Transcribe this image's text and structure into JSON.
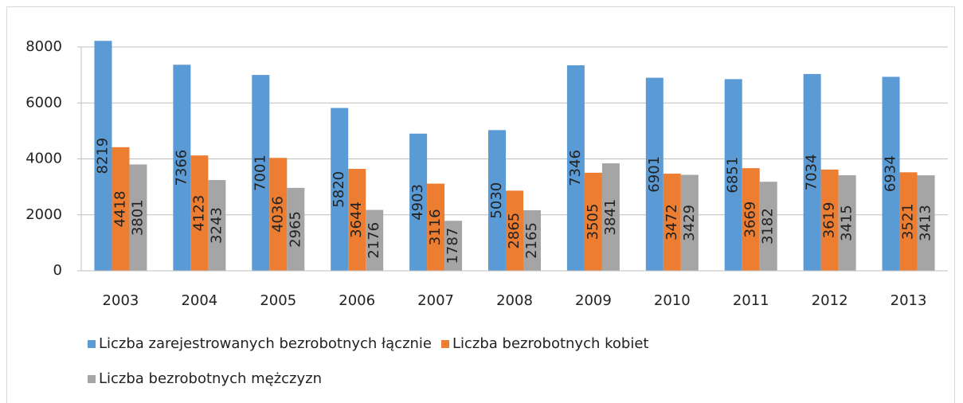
{
  "chart_data": {
    "type": "bar",
    "categories": [
      "2003",
      "2004",
      "2005",
      "2006",
      "2007",
      "2008",
      "2009",
      "2010",
      "2011",
      "2012",
      "2013"
    ],
    "series": [
      {
        "name": "Liczba zarejestrowanych bezrobotnych łącznie",
        "color": "#5b9bd5",
        "values": [
          8219,
          7366,
          7001,
          5820,
          4903,
          5030,
          7346,
          6901,
          6851,
          7034,
          6934
        ]
      },
      {
        "name": "Liczba bezrobotnych kobiet",
        "color": "#ed7d31",
        "values": [
          4418,
          4123,
          4036,
          3644,
          3116,
          2865,
          3505,
          3472,
          3669,
          3619,
          3521
        ]
      },
      {
        "name": "Liczba bezrobotnych mężczyzn",
        "color": "#a5a5a5",
        "values": [
          3801,
          3243,
          2965,
          2176,
          1787,
          2165,
          3841,
          3429,
          3182,
          3415,
          3413
        ]
      }
    ],
    "ylim": [
      0,
      8000
    ],
    "yticks": [
      0,
      2000,
      4000,
      6000,
      8000
    ],
    "grid": true,
    "legend": "bottom"
  }
}
